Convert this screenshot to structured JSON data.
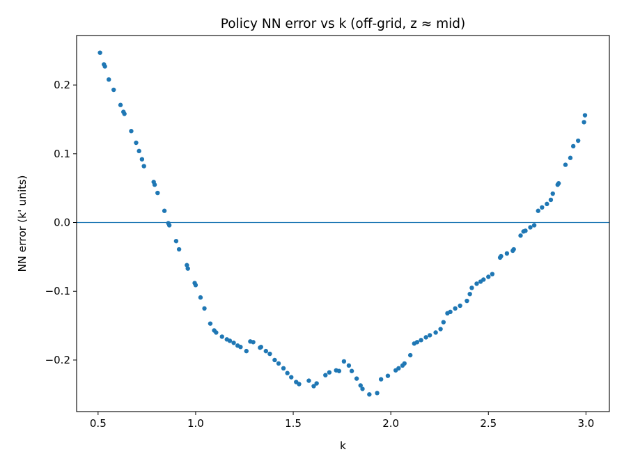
{
  "chart_data": {
    "type": "scatter",
    "title": "Policy NN error vs k (off-grid, z ≈ mid)",
    "xlabel": "k",
    "ylabel": "NN error (k' units)",
    "xlim": [
      0.39,
      3.12
    ],
    "ylim": [
      -0.275,
      0.272
    ],
    "xticks": [
      0.5,
      1.0,
      1.5,
      2.0,
      2.5,
      3.0
    ],
    "xtick_labels": [
      "0.5",
      "1.0",
      "1.5",
      "2.0",
      "2.5",
      "3.0"
    ],
    "yticks": [
      -0.2,
      -0.1,
      0.0,
      0.1,
      0.2
    ],
    "ytick_labels": [
      "−0.2",
      "−0.1",
      "0.0",
      "0.1",
      "0.2"
    ],
    "grid": false,
    "legend": false,
    "hline": 0.0,
    "colors": {
      "points": "#1f77b4",
      "hline": "#1f77b4"
    },
    "points": [
      [
        0.51,
        0.247
      ],
      [
        0.53,
        0.23
      ],
      [
        0.535,
        0.227
      ],
      [
        0.555,
        0.208
      ],
      [
        0.58,
        0.193
      ],
      [
        0.615,
        0.171
      ],
      [
        0.63,
        0.161
      ],
      [
        0.635,
        0.158
      ],
      [
        0.67,
        0.133
      ],
      [
        0.695,
        0.116
      ],
      [
        0.71,
        0.104
      ],
      [
        0.725,
        0.092
      ],
      [
        0.735,
        0.082
      ],
      [
        0.785,
        0.059
      ],
      [
        0.79,
        0.055
      ],
      [
        0.805,
        0.043
      ],
      [
        0.84,
        0.017
      ],
      [
        0.86,
        -0.001
      ],
      [
        0.865,
        -0.004
      ],
      [
        0.9,
        -0.027
      ],
      [
        0.915,
        -0.039
      ],
      [
        0.955,
        -0.062
      ],
      [
        0.96,
        -0.067
      ],
      [
        0.995,
        -0.088
      ],
      [
        1.0,
        -0.091
      ],
      [
        1.025,
        -0.109
      ],
      [
        1.045,
        -0.125
      ],
      [
        1.075,
        -0.147
      ],
      [
        1.095,
        -0.157
      ],
      [
        1.105,
        -0.16
      ],
      [
        1.135,
        -0.166
      ],
      [
        1.16,
        -0.17
      ],
      [
        1.175,
        -0.172
      ],
      [
        1.195,
        -0.175
      ],
      [
        1.215,
        -0.179
      ],
      [
        1.23,
        -0.181
      ],
      [
        1.26,
        -0.187
      ],
      [
        1.28,
        -0.173
      ],
      [
        1.295,
        -0.174
      ],
      [
        1.33,
        -0.182
      ],
      [
        1.335,
        -0.181
      ],
      [
        1.36,
        -0.187
      ],
      [
        1.38,
        -0.191
      ],
      [
        1.405,
        -0.2
      ],
      [
        1.425,
        -0.205
      ],
      [
        1.45,
        -0.212
      ],
      [
        1.47,
        -0.219
      ],
      [
        1.49,
        -0.225
      ],
      [
        1.515,
        -0.232
      ],
      [
        1.53,
        -0.235
      ],
      [
        1.58,
        -0.23
      ],
      [
        1.605,
        -0.238
      ],
      [
        1.62,
        -0.234
      ],
      [
        1.665,
        -0.222
      ],
      [
        1.685,
        -0.218
      ],
      [
        1.72,
        -0.215
      ],
      [
        1.735,
        -0.216
      ],
      [
        1.76,
        -0.202
      ],
      [
        1.785,
        -0.208
      ],
      [
        1.8,
        -0.216
      ],
      [
        1.825,
        -0.227
      ],
      [
        1.845,
        -0.237
      ],
      [
        1.855,
        -0.242
      ],
      [
        1.89,
        -0.25
      ],
      [
        1.93,
        -0.248
      ],
      [
        1.95,
        -0.228
      ],
      [
        1.985,
        -0.223
      ],
      [
        2.025,
        -0.215
      ],
      [
        2.04,
        -0.212
      ],
      [
        2.06,
        -0.208
      ],
      [
        2.07,
        -0.205
      ],
      [
        2.1,
        -0.193
      ],
      [
        2.12,
        -0.176
      ],
      [
        2.135,
        -0.174
      ],
      [
        2.155,
        -0.171
      ],
      [
        2.18,
        -0.167
      ],
      [
        2.2,
        -0.164
      ],
      [
        2.23,
        -0.16
      ],
      [
        2.255,
        -0.155
      ],
      [
        2.27,
        -0.145
      ],
      [
        2.29,
        -0.132
      ],
      [
        2.305,
        -0.13
      ],
      [
        2.33,
        -0.125
      ],
      [
        2.355,
        -0.121
      ],
      [
        2.39,
        -0.114
      ],
      [
        2.405,
        -0.104
      ],
      [
        2.415,
        -0.095
      ],
      [
        2.44,
        -0.089
      ],
      [
        2.46,
        -0.086
      ],
      [
        2.475,
        -0.083
      ],
      [
        2.5,
        -0.079
      ],
      [
        2.52,
        -0.075
      ],
      [
        2.56,
        -0.051
      ],
      [
        2.565,
        -0.049
      ],
      [
        2.595,
        -0.045
      ],
      [
        2.625,
        -0.041
      ],
      [
        2.63,
        -0.039
      ],
      [
        2.665,
        -0.019
      ],
      [
        2.68,
        -0.013
      ],
      [
        2.69,
        -0.012
      ],
      [
        2.715,
        -0.007
      ],
      [
        2.735,
        -0.004
      ],
      [
        2.755,
        0.017
      ],
      [
        2.775,
        0.022
      ],
      [
        2.8,
        0.027
      ],
      [
        2.82,
        0.033
      ],
      [
        2.83,
        0.042
      ],
      [
        2.855,
        0.055
      ],
      [
        2.86,
        0.057
      ],
      [
        2.895,
        0.084
      ],
      [
        2.92,
        0.094
      ],
      [
        2.935,
        0.111
      ],
      [
        2.96,
        0.119
      ],
      [
        2.99,
        0.146
      ],
      [
        2.995,
        0.156
      ]
    ]
  }
}
